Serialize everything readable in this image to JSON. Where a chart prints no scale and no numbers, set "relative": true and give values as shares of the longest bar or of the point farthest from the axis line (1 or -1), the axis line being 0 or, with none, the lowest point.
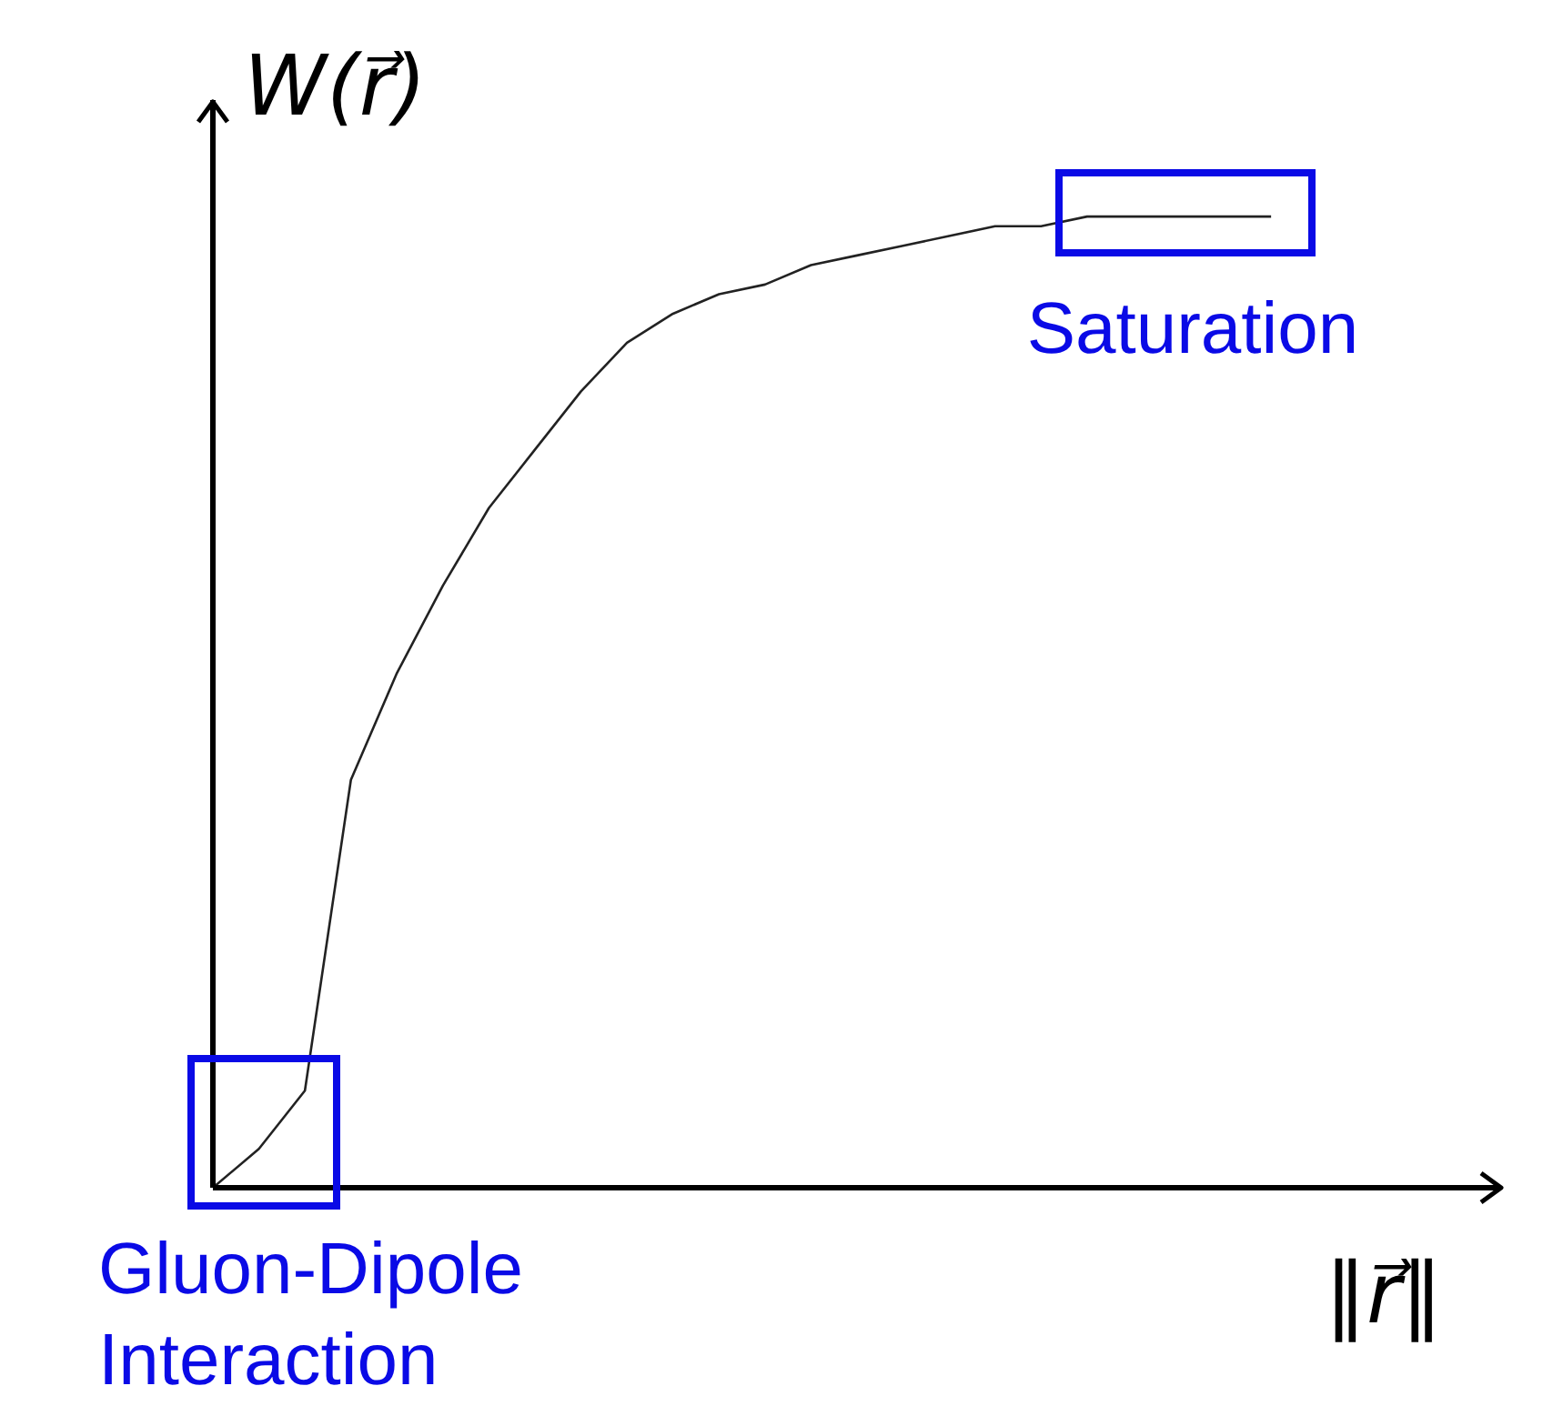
{
  "chart_data": {
    "type": "line",
    "relative": true,
    "xlabel": "‖r⃗‖",
    "ylabel": "W(r⃗)",
    "categories": [
      null,
      null,
      null,
      null,
      null,
      null,
      null,
      null,
      null,
      null,
      null,
      null,
      null,
      null,
      null,
      null,
      null,
      null,
      null,
      null,
      null,
      null,
      null,
      null,
      null,
      null,
      null,
      null,
      null
    ],
    "series": [
      {
        "color": "#222222",
        "values": [
          0,
          0.04,
          0.1,
          0.42,
          0.53,
          0.62,
          0.7,
          0.76,
          0.82,
          0.87,
          0.9,
          0.92,
          0.93,
          0.95,
          0.96,
          0.97,
          0.98,
          0.99,
          0.99,
          1,
          1,
          1,
          1,
          1,
          null,
          null,
          null,
          null,
          null
        ]
      }
    ],
    "marker": "none",
    "line_style": "solid",
    "grid": false,
    "legend": false,
    "annotations": [
      "Saturation",
      "Gluon-Dipole\nInteraction"
    ]
  }
}
